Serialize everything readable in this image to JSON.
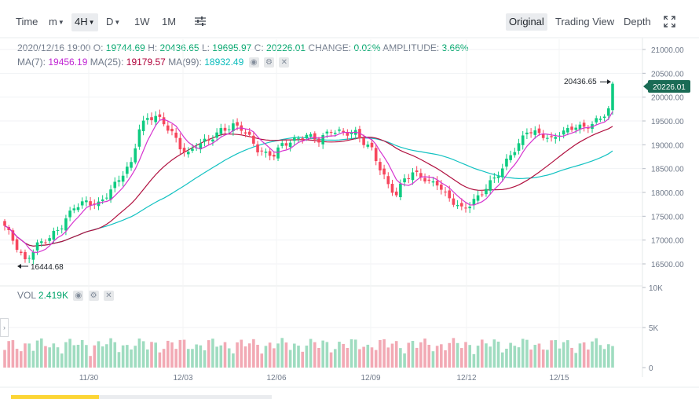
{
  "toolbar": {
    "time": "Time",
    "m": "m",
    "h4": "4H",
    "d": "D",
    "w1": "1W",
    "m1": "1M",
    "original": "Original",
    "trading_view": "Trading View",
    "depth": "Depth"
  },
  "ohlc": {
    "date": "2020/12/16 19:00",
    "o_label": "O:",
    "o": "19744.69",
    "h_label": "H:",
    "h": "20436.65",
    "l_label": "L:",
    "l": "19695.97",
    "c_label": "C:",
    "c": "20226.01",
    "change_label": "CHANGE:",
    "change": "0.02%",
    "amp_label": "AMPLITUDE:",
    "amp": "3.66%"
  },
  "ma": {
    "ma7_label": "MA(7):",
    "ma7": "19456.19",
    "ma25_label": "MA(25):",
    "ma25": "19179.57",
    "ma99_label": "MA(99):",
    "ma99": "18932.49"
  },
  "vol": {
    "label": "VOL",
    "value": "2.419K"
  },
  "price_axis": [
    "21000.00",
    "20500.00",
    "20000.00",
    "19500.00",
    "19000.00",
    "18500.00",
    "18000.00",
    "17500.00",
    "17000.00",
    "16500.00"
  ],
  "current_price": "20226.01",
  "high_marker": "20436.65",
  "low_marker": "16444.68",
  "vol_axis": [
    "10K",
    "5K",
    "0"
  ],
  "date_labels": [
    "11/30",
    "12/03",
    "12/06",
    "12/09",
    "12/12",
    "12/15"
  ],
  "colors": {
    "up": "#0ecb81",
    "down": "#f6465d",
    "ma7": "#d633cf",
    "ma25": "#b0103f",
    "ma99": "#13c2c2",
    "price_tag": "#1a6b55"
  }
}
